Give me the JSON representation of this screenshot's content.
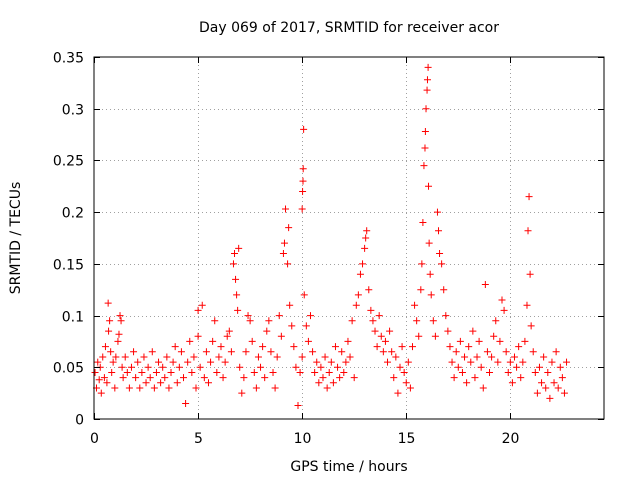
{
  "chart_data": {
    "type": "scatter",
    "title": "Day 069 of 2017, SRMTID for receiver acor",
    "xlabel": "GPS time / hours",
    "ylabel": "SRMTID / TECUs",
    "xlim": [
      0,
      24.5
    ],
    "ylim": [
      0,
      0.35
    ],
    "x_ticks": [
      0,
      5,
      10,
      15,
      20
    ],
    "x_tick_labels": [
      "0",
      "5",
      "10",
      "15",
      "20"
    ],
    "y_ticks": [
      0,
      0.05,
      0.1,
      0.15,
      0.2,
      0.25,
      0.3,
      0.35
    ],
    "y_tick_labels": [
      "0",
      "0.05",
      "0.1",
      "0.15",
      "0.2",
      "0.25",
      "0.3",
      "0.35"
    ],
    "grid": true,
    "marker": "+",
    "color": "#ff0000",
    "series": [
      {
        "name": "acor",
        "points": [
          [
            0.05,
            0.045
          ],
          [
            0.12,
            0.03
          ],
          [
            0.18,
            0.055
          ],
          [
            0.25,
            0.038
          ],
          [
            0.3,
            0.05
          ],
          [
            0.35,
            0.025
          ],
          [
            0.42,
            0.06
          ],
          [
            0.5,
            0.04
          ],
          [
            0.55,
            0.07
          ],
          [
            0.62,
            0.035
          ],
          [
            0.68,
            0.112
          ],
          [
            0.7,
            0.085
          ],
          [
            0.75,
            0.095
          ],
          [
            0.8,
            0.065
          ],
          [
            0.85,
            0.045
          ],
          [
            0.92,
            0.055
          ],
          [
            1.0,
            0.03
          ],
          [
            1.05,
            0.06
          ],
          [
            1.15,
            0.075
          ],
          [
            1.2,
            0.082
          ],
          [
            1.25,
            0.1
          ],
          [
            1.3,
            0.095
          ],
          [
            1.35,
            0.05
          ],
          [
            1.4,
            0.04
          ],
          [
            1.5,
            0.06
          ],
          [
            1.6,
            0.045
          ],
          [
            1.7,
            0.03
          ],
          [
            1.8,
            0.05
          ],
          [
            1.9,
            0.065
          ],
          [
            2.0,
            0.04
          ],
          [
            2.1,
            0.055
          ],
          [
            2.2,
            0.03
          ],
          [
            2.3,
            0.045
          ],
          [
            2.4,
            0.06
          ],
          [
            2.5,
            0.035
          ],
          [
            2.6,
            0.05
          ],
          [
            2.7,
            0.04
          ],
          [
            2.8,
            0.065
          ],
          [
            2.9,
            0.03
          ],
          [
            3.0,
            0.045
          ],
          [
            3.1,
            0.055
          ],
          [
            3.2,
            0.035
          ],
          [
            3.3,
            0.05
          ],
          [
            3.4,
            0.04
          ],
          [
            3.5,
            0.06
          ],
          [
            3.6,
            0.03
          ],
          [
            3.7,
            0.045
          ],
          [
            3.8,
            0.055
          ],
          [
            3.9,
            0.07
          ],
          [
            4.0,
            0.035
          ],
          [
            4.1,
            0.05
          ],
          [
            4.2,
            0.065
          ],
          [
            4.3,
            0.04
          ],
          [
            4.4,
            0.015
          ],
          [
            4.5,
            0.055
          ],
          [
            4.6,
            0.075
          ],
          [
            4.7,
            0.045
          ],
          [
            4.8,
            0.06
          ],
          [
            4.9,
            0.03
          ],
          [
            5.0,
            0.08
          ],
          [
            5.0,
            0.105
          ],
          [
            5.1,
            0.05
          ],
          [
            5.2,
            0.11
          ],
          [
            5.3,
            0.04
          ],
          [
            5.4,
            0.065
          ],
          [
            5.5,
            0.035
          ],
          [
            5.6,
            0.055
          ],
          [
            5.7,
            0.075
          ],
          [
            5.8,
            0.095
          ],
          [
            5.9,
            0.045
          ],
          [
            6.0,
            0.06
          ],
          [
            6.1,
            0.07
          ],
          [
            6.2,
            0.04
          ],
          [
            6.3,
            0.055
          ],
          [
            6.4,
            0.08
          ],
          [
            6.5,
            0.085
          ],
          [
            6.6,
            0.065
          ],
          [
            6.7,
            0.15
          ],
          [
            6.75,
            0.16
          ],
          [
            6.8,
            0.135
          ],
          [
            6.85,
            0.12
          ],
          [
            6.9,
            0.105
          ],
          [
            6.95,
            0.165
          ],
          [
            7.0,
            0.05
          ],
          [
            7.1,
            0.025
          ],
          [
            7.2,
            0.04
          ],
          [
            7.3,
            0.065
          ],
          [
            7.4,
            0.1
          ],
          [
            7.5,
            0.095
          ],
          [
            7.6,
            0.075
          ],
          [
            7.7,
            0.045
          ],
          [
            7.8,
            0.03
          ],
          [
            7.9,
            0.06
          ],
          [
            8.0,
            0.05
          ],
          [
            8.1,
            0.07
          ],
          [
            8.2,
            0.04
          ],
          [
            8.3,
            0.085
          ],
          [
            8.4,
            0.095
          ],
          [
            8.5,
            0.065
          ],
          [
            8.6,
            0.045
          ],
          [
            8.7,
            0.03
          ],
          [
            8.8,
            0.06
          ],
          [
            8.9,
            0.1
          ],
          [
            9.0,
            0.08
          ],
          [
            9.1,
            0.16
          ],
          [
            9.15,
            0.17
          ],
          [
            9.2,
            0.203
          ],
          [
            9.3,
            0.15
          ],
          [
            9.35,
            0.185
          ],
          [
            9.4,
            0.11
          ],
          [
            9.5,
            0.09
          ],
          [
            9.6,
            0.07
          ],
          [
            9.7,
            0.05
          ],
          [
            9.8,
            0.013
          ],
          [
            9.9,
            0.045
          ],
          [
            10.0,
            0.06
          ],
          [
            10.0,
            0.203
          ],
          [
            10.02,
            0.22
          ],
          [
            10.04,
            0.23
          ],
          [
            10.05,
            0.242
          ],
          [
            10.07,
            0.28
          ],
          [
            10.1,
            0.12
          ],
          [
            10.2,
            0.09
          ],
          [
            10.3,
            0.075
          ],
          [
            10.4,
            0.1
          ],
          [
            10.5,
            0.065
          ],
          [
            10.6,
            0.045
          ],
          [
            10.7,
            0.055
          ],
          [
            10.8,
            0.035
          ],
          [
            10.9,
            0.05
          ],
          [
            11.0,
            0.04
          ],
          [
            11.1,
            0.06
          ],
          [
            11.2,
            0.03
          ],
          [
            11.3,
            0.045
          ],
          [
            11.4,
            0.055
          ],
          [
            11.5,
            0.035
          ],
          [
            11.6,
            0.07
          ],
          [
            11.7,
            0.05
          ],
          [
            11.8,
            0.04
          ],
          [
            11.9,
            0.065
          ],
          [
            12.0,
            0.045
          ],
          [
            12.1,
            0.055
          ],
          [
            12.2,
            0.075
          ],
          [
            12.3,
            0.06
          ],
          [
            12.4,
            0.095
          ],
          [
            12.5,
            0.04
          ],
          [
            12.6,
            0.11
          ],
          [
            12.7,
            0.12
          ],
          [
            12.8,
            0.14
          ],
          [
            12.9,
            0.15
          ],
          [
            13.0,
            0.165
          ],
          [
            13.05,
            0.175
          ],
          [
            13.1,
            0.182
          ],
          [
            13.2,
            0.125
          ],
          [
            13.3,
            0.105
          ],
          [
            13.4,
            0.095
          ],
          [
            13.5,
            0.085
          ],
          [
            13.6,
            0.07
          ],
          [
            13.7,
            0.1
          ],
          [
            13.8,
            0.08
          ],
          [
            13.9,
            0.065
          ],
          [
            14.0,
            0.075
          ],
          [
            14.1,
            0.055
          ],
          [
            14.2,
            0.085
          ],
          [
            14.3,
            0.065
          ],
          [
            14.4,
            0.04
          ],
          [
            14.5,
            0.06
          ],
          [
            14.6,
            0.025
          ],
          [
            14.7,
            0.05
          ],
          [
            14.8,
            0.07
          ],
          [
            14.9,
            0.045
          ],
          [
            15.0,
            0.035
          ],
          [
            15.1,
            0.055
          ],
          [
            15.2,
            0.03
          ],
          [
            15.3,
            0.07
          ],
          [
            15.4,
            0.11
          ],
          [
            15.5,
            0.095
          ],
          [
            15.6,
            0.08
          ],
          [
            15.7,
            0.125
          ],
          [
            15.75,
            0.15
          ],
          [
            15.8,
            0.19
          ],
          [
            15.85,
            0.245
          ],
          [
            15.9,
            0.262
          ],
          [
            15.92,
            0.278
          ],
          [
            15.95,
            0.3
          ],
          [
            16.0,
            0.318
          ],
          [
            16.02,
            0.328
          ],
          [
            16.05,
            0.34
          ],
          [
            16.07,
            0.225
          ],
          [
            16.1,
            0.17
          ],
          [
            16.15,
            0.14
          ],
          [
            16.2,
            0.12
          ],
          [
            16.3,
            0.095
          ],
          [
            16.4,
            0.08
          ],
          [
            16.5,
            0.2
          ],
          [
            16.55,
            0.182
          ],
          [
            16.6,
            0.16
          ],
          [
            16.7,
            0.15
          ],
          [
            16.8,
            0.125
          ],
          [
            16.9,
            0.1
          ],
          [
            17.0,
            0.085
          ],
          [
            17.1,
            0.07
          ],
          [
            17.2,
            0.055
          ],
          [
            17.3,
            0.04
          ],
          [
            17.4,
            0.065
          ],
          [
            17.5,
            0.05
          ],
          [
            17.6,
            0.075
          ],
          [
            17.7,
            0.045
          ],
          [
            17.8,
            0.06
          ],
          [
            17.9,
            0.035
          ],
          [
            18.0,
            0.07
          ],
          [
            18.1,
            0.055
          ],
          [
            18.2,
            0.085
          ],
          [
            18.3,
            0.04
          ],
          [
            18.4,
            0.06
          ],
          [
            18.5,
            0.075
          ],
          [
            18.6,
            0.05
          ],
          [
            18.7,
            0.03
          ],
          [
            18.8,
            0.13
          ],
          [
            18.9,
            0.065
          ],
          [
            19.0,
            0.045
          ],
          [
            19.1,
            0.06
          ],
          [
            19.2,
            0.08
          ],
          [
            19.3,
            0.095
          ],
          [
            19.4,
            0.055
          ],
          [
            19.5,
            0.075
          ],
          [
            19.6,
            0.115
          ],
          [
            19.7,
            0.105
          ],
          [
            19.8,
            0.065
          ],
          [
            19.9,
            0.045
          ],
          [
            20.0,
            0.055
          ],
          [
            20.1,
            0.035
          ],
          [
            20.2,
            0.06
          ],
          [
            20.3,
            0.05
          ],
          [
            20.4,
            0.07
          ],
          [
            20.5,
            0.04
          ],
          [
            20.6,
            0.055
          ],
          [
            20.7,
            0.075
          ],
          [
            20.8,
            0.11
          ],
          [
            20.85,
            0.182
          ],
          [
            20.9,
            0.215
          ],
          [
            20.95,
            0.14
          ],
          [
            21.0,
            0.09
          ],
          [
            21.1,
            0.065
          ],
          [
            21.2,
            0.045
          ],
          [
            21.3,
            0.025
          ],
          [
            21.4,
            0.05
          ],
          [
            21.5,
            0.035
          ],
          [
            21.6,
            0.06
          ],
          [
            21.7,
            0.03
          ],
          [
            21.8,
            0.045
          ],
          [
            21.9,
            0.02
          ],
          [
            22.0,
            0.055
          ],
          [
            22.1,
            0.035
          ],
          [
            22.2,
            0.065
          ],
          [
            22.3,
            0.03
          ],
          [
            22.4,
            0.05
          ],
          [
            22.5,
            0.04
          ],
          [
            22.6,
            0.025
          ],
          [
            22.7,
            0.055
          ]
        ]
      }
    ]
  }
}
